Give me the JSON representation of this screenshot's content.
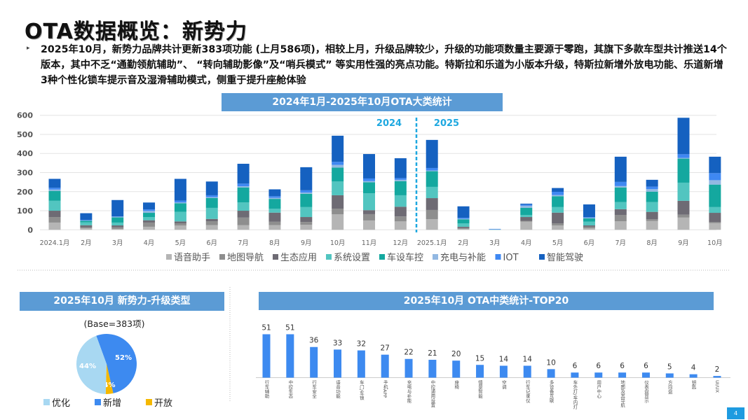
{
  "title": "OTA数据概览：新势力",
  "summary": "2025年10月，新势力品牌共计更新383项功能 (上月586项)，相较上月，升级品牌较少，升级的功能项数量主要源于零跑，其旗下多款车型共计推送14个版本，其中不乏“通勤领航辅助”、 “转向辅助影像”及“哨兵模式” 等实用性强的亮点功能。特斯拉和乐道为小版本升级，特斯拉新增外放电功能、乐道新增3种个性化锁车提示音及湿滑辅助模式，侧重于提升座舱体验",
  "page_number": "4",
  "chart_data": [
    {
      "type": "bar",
      "stacked": true,
      "title": "2024年1月-2025年10月OTA大类统计",
      "annotations": [
        "2024",
        "2025"
      ],
      "ylim": [
        0,
        600
      ],
      "yticks": [
        0,
        100,
        200,
        300,
        400,
        500,
        600
      ],
      "grid": true,
      "legend": "bottom",
      "categories": [
        "2024.1月",
        "2月",
        "3月",
        "4月",
        "5月",
        "6月",
        "7月",
        "8月",
        "9月",
        "10月",
        "11月",
        "12月",
        "2025.1月",
        "2月",
        "3月",
        "4月",
        "5月",
        "6月",
        "7月",
        "8月",
        "9月",
        "10月"
      ],
      "series": [
        {
          "name": "语音助手",
          "color": "#b5b5b5",
          "values": [
            38,
            8,
            5,
            16,
            22,
            25,
            24,
            25,
            26,
            81,
            49,
            44,
            56,
            5,
            0,
            43,
            23,
            8,
            45,
            46,
            64,
            35
          ]
        },
        {
          "name": "地图导航",
          "color": "#8e8e8e",
          "values": [
            29,
            6,
            8,
            22,
            12,
            20,
            40,
            17,
            15,
            30,
            33,
            26,
            48,
            5,
            0,
            4,
            11,
            8,
            33,
            9,
            15,
            5
          ]
        },
        {
          "name": "生态应用",
          "color": "#6e6b74",
          "values": [
            33,
            10,
            10,
            12,
            10,
            12,
            36,
            48,
            26,
            70,
            21,
            51,
            62,
            6,
            0,
            20,
            56,
            7,
            30,
            39,
            73,
            49
          ]
        },
        {
          "name": "系统设置",
          "color": "#52c5c0",
          "values": [
            52,
            15,
            15,
            17,
            50,
            58,
            44,
            20,
            52,
            72,
            88,
            60,
            59,
            18,
            1,
            10,
            29,
            20,
            37,
            51,
            95,
            30
          ]
        },
        {
          "name": "车设车控",
          "color": "#14a89f",
          "values": [
            52,
            8,
            27,
            22,
            45,
            52,
            78,
            52,
            70,
            73,
            58,
            74,
            82,
            21,
            0,
            38,
            57,
            17,
            77,
            55,
            126,
            118
          ]
        },
        {
          "name": "充电与补能",
          "color": "#92b8e2",
          "values": [
            7,
            2,
            3,
            10,
            4,
            4,
            6,
            6,
            6,
            14,
            6,
            7,
            4,
            3,
            2,
            11,
            6,
            3,
            7,
            13,
            4,
            23
          ]
        },
        {
          "name": "IOT",
          "color": "#3f88f2",
          "values": [
            9,
            3,
            2,
            8,
            10,
            10,
            14,
            8,
            12,
            16,
            14,
            9,
            13,
            5,
            2,
            6,
            17,
            3,
            22,
            13,
            19,
            37
          ]
        },
        {
          "name": "智能驾驶",
          "color": "#1561c0",
          "values": [
            47,
            35,
            86,
            36,
            114,
            72,
            104,
            36,
            121,
            137,
            128,
            104,
            147,
            60,
            0,
            5,
            20,
            67,
            132,
            36,
            191,
            86
          ]
        }
      ]
    },
    {
      "type": "pie",
      "title": "2025年10月 新势力-升级类型",
      "subtitle": "(Base=383项)",
      "legend": "bottom",
      "slices": [
        {
          "name": "新增",
          "value": 52,
          "label": "52%",
          "color": "#3d8af0"
        },
        {
          "name": "开放",
          "value": 4,
          "label": "4%",
          "color": "#f5b800"
        },
        {
          "name": "优化",
          "value": 44,
          "label": "44%",
          "color": "#a8d8f2"
        }
      ],
      "legend_order": [
        "优化",
        "新增",
        "开放"
      ]
    },
    {
      "type": "bar",
      "title": "2025年10月 OTA中类统计-TOP20",
      "color": "#3d8af0",
      "categories": [
        "行车辅助",
        "中控生态",
        "行车安全",
        "语音功能",
        "车门/车锁",
        "手机APP",
        "充电与补能",
        "中控通用设置",
        "座椅",
        "情景智能",
        "空调",
        "行车记录仪",
        "多设备互联",
        "车外灯/车内灯",
        "用户中心",
        "地图及其导航",
        "仪表盘显示",
        "方向盘",
        "钥匙",
        "UI/UX"
      ],
      "values": [
        51,
        51,
        36,
        33,
        32,
        27,
        22,
        21,
        20,
        15,
        14,
        14,
        10,
        6,
        6,
        6,
        6,
        5,
        4,
        2
      ]
    }
  ]
}
